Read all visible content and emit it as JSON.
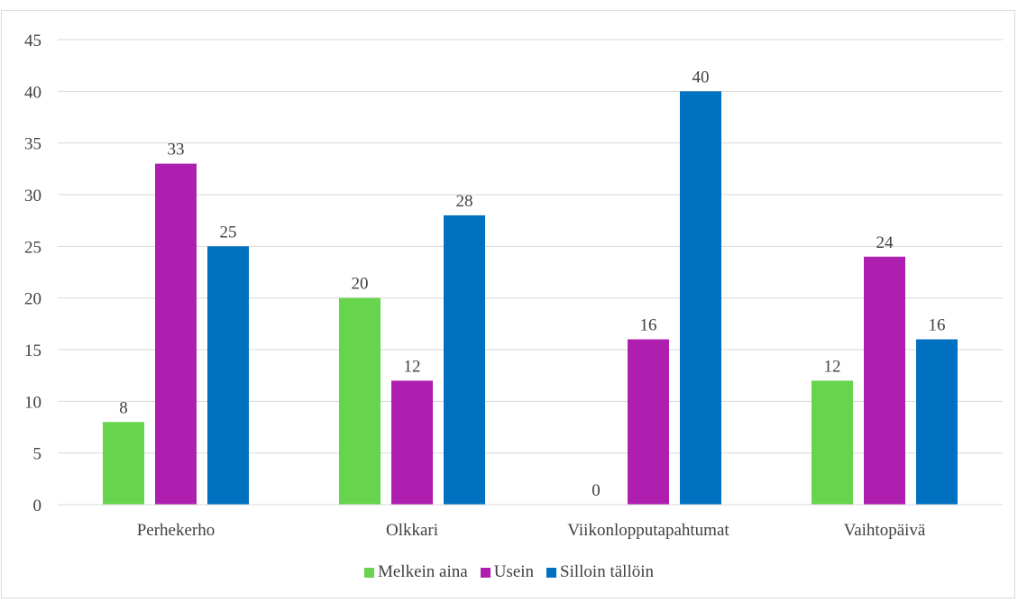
{
  "chart_data": {
    "type": "bar",
    "title": "",
    "xlabel": "",
    "ylabel": "",
    "categories": [
      "Perhekerho",
      "Olkkari",
      "Viikonlopputapahtumat",
      "Vaihtopäivä"
    ],
    "series": [
      {
        "name": "Melkein aina",
        "color": "#66d44c",
        "values": [
          8,
          20,
          0,
          12
        ]
      },
      {
        "name": "Usein",
        "color": "#ae1fb0",
        "values": [
          33,
          12,
          16,
          24
        ]
      },
      {
        "name": "Silloin tällöin",
        "color": "#0070c0",
        "values": [
          25,
          28,
          40,
          16
        ]
      }
    ],
    "ylim": [
      0,
      45
    ],
    "yticks": [
      0,
      5,
      10,
      15,
      20,
      25,
      30,
      35,
      40,
      45
    ],
    "grid": true,
    "legend_position": "bottom"
  }
}
